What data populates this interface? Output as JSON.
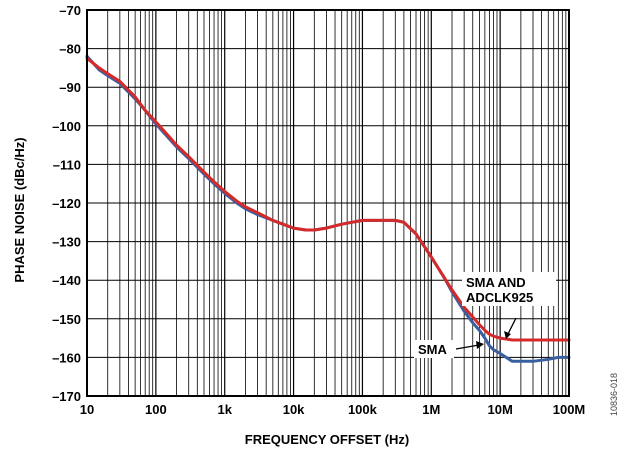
{
  "chart_data": {
    "type": "line",
    "xlabel": "FREQUENCY OFFSET (Hz)",
    "ylabel": "PHASE NOISE (dBc/Hz)",
    "x_scale": "log",
    "xlim": [
      10,
      100000000
    ],
    "ylim": [
      -170,
      -70
    ],
    "grid": true,
    "x_ticks": [
      "10",
      "100",
      "1k",
      "10k",
      "100k",
      "1M",
      "10M",
      "100M"
    ],
    "y_ticks": [
      "–70",
      "–80",
      "–90",
      "–100",
      "–110",
      "–120",
      "–130",
      "–140",
      "–150",
      "–160",
      "–170"
    ],
    "series": [
      {
        "name": "SMA",
        "color": "#3a5fa0",
        "points": [
          [
            10,
            -82
          ],
          [
            15,
            -85.5
          ],
          [
            20,
            -87
          ],
          [
            30,
            -89
          ],
          [
            50,
            -93
          ],
          [
            70,
            -96
          ],
          [
            100,
            -99.5
          ],
          [
            150,
            -103
          ],
          [
            200,
            -105.5
          ],
          [
            300,
            -108.5
          ],
          [
            500,
            -112.5
          ],
          [
            700,
            -115
          ],
          [
            1000,
            -117.5
          ],
          [
            1500,
            -120
          ],
          [
            2000,
            -121.5
          ],
          [
            3000,
            -123
          ],
          [
            5000,
            -124.5
          ],
          [
            7000,
            -125.5
          ],
          [
            10000,
            -126.5
          ],
          [
            15000,
            -127
          ],
          [
            20000,
            -127
          ],
          [
            30000,
            -126.5
          ],
          [
            50000,
            -125.5
          ],
          [
            70000,
            -125
          ],
          [
            100000,
            -124.5
          ],
          [
            200000,
            -124.5
          ],
          [
            300000,
            -124.5
          ],
          [
            400000,
            -125
          ],
          [
            600000,
            -128
          ],
          [
            1000000,
            -134
          ],
          [
            1500000,
            -139
          ],
          [
            2000000,
            -143
          ],
          [
            3000000,
            -148
          ],
          [
            4000000,
            -151
          ],
          [
            5000000,
            -153
          ],
          [
            6000000,
            -155
          ],
          [
            7000000,
            -157
          ],
          [
            8000000,
            -158
          ],
          [
            10000000,
            -159
          ],
          [
            15000000,
            -161
          ],
          [
            20000000,
            -161
          ],
          [
            30000000,
            -161
          ],
          [
            50000000,
            -160.5
          ],
          [
            70000000,
            -160
          ],
          [
            100000000,
            -160
          ]
        ]
      },
      {
        "name": "SMA AND ADCLK925",
        "color": "#d42a2a",
        "points": [
          [
            10,
            -82.5
          ],
          [
            15,
            -85
          ],
          [
            20,
            -86.5
          ],
          [
            30,
            -88.5
          ],
          [
            50,
            -92.5
          ],
          [
            70,
            -96
          ],
          [
            100,
            -99
          ],
          [
            150,
            -102.5
          ],
          [
            200,
            -105
          ],
          [
            300,
            -108
          ],
          [
            500,
            -112
          ],
          [
            700,
            -114.5
          ],
          [
            1000,
            -117
          ],
          [
            1500,
            -119.5
          ],
          [
            2000,
            -121
          ],
          [
            3000,
            -122.5
          ],
          [
            5000,
            -124.5
          ],
          [
            7000,
            -125.5
          ],
          [
            10000,
            -126.5
          ],
          [
            15000,
            -127
          ],
          [
            20000,
            -127
          ],
          [
            30000,
            -126.5
          ],
          [
            50000,
            -125.5
          ],
          [
            70000,
            -125
          ],
          [
            100000,
            -124.5
          ],
          [
            200000,
            -124.5
          ],
          [
            300000,
            -124.5
          ],
          [
            400000,
            -125
          ],
          [
            600000,
            -128
          ],
          [
            1000000,
            -134
          ],
          [
            1500000,
            -139
          ],
          [
            2000000,
            -142.5
          ],
          [
            3000000,
            -147
          ],
          [
            4000000,
            -149.5
          ],
          [
            5000000,
            -151.5
          ],
          [
            6000000,
            -153
          ],
          [
            7000000,
            -154
          ],
          [
            8000000,
            -154.5
          ],
          [
            10000000,
            -155
          ],
          [
            15000000,
            -155.5
          ],
          [
            30000000,
            -155.5
          ],
          [
            100000000,
            -155.5
          ]
        ]
      }
    ],
    "annotations": [
      {
        "lines": [
          "SMA AND",
          "ADCLK925"
        ],
        "series": "SMA AND ADCLK925"
      },
      {
        "lines": [
          "SMA"
        ],
        "series": "SMA"
      }
    ],
    "figure_id": "10836-018"
  }
}
